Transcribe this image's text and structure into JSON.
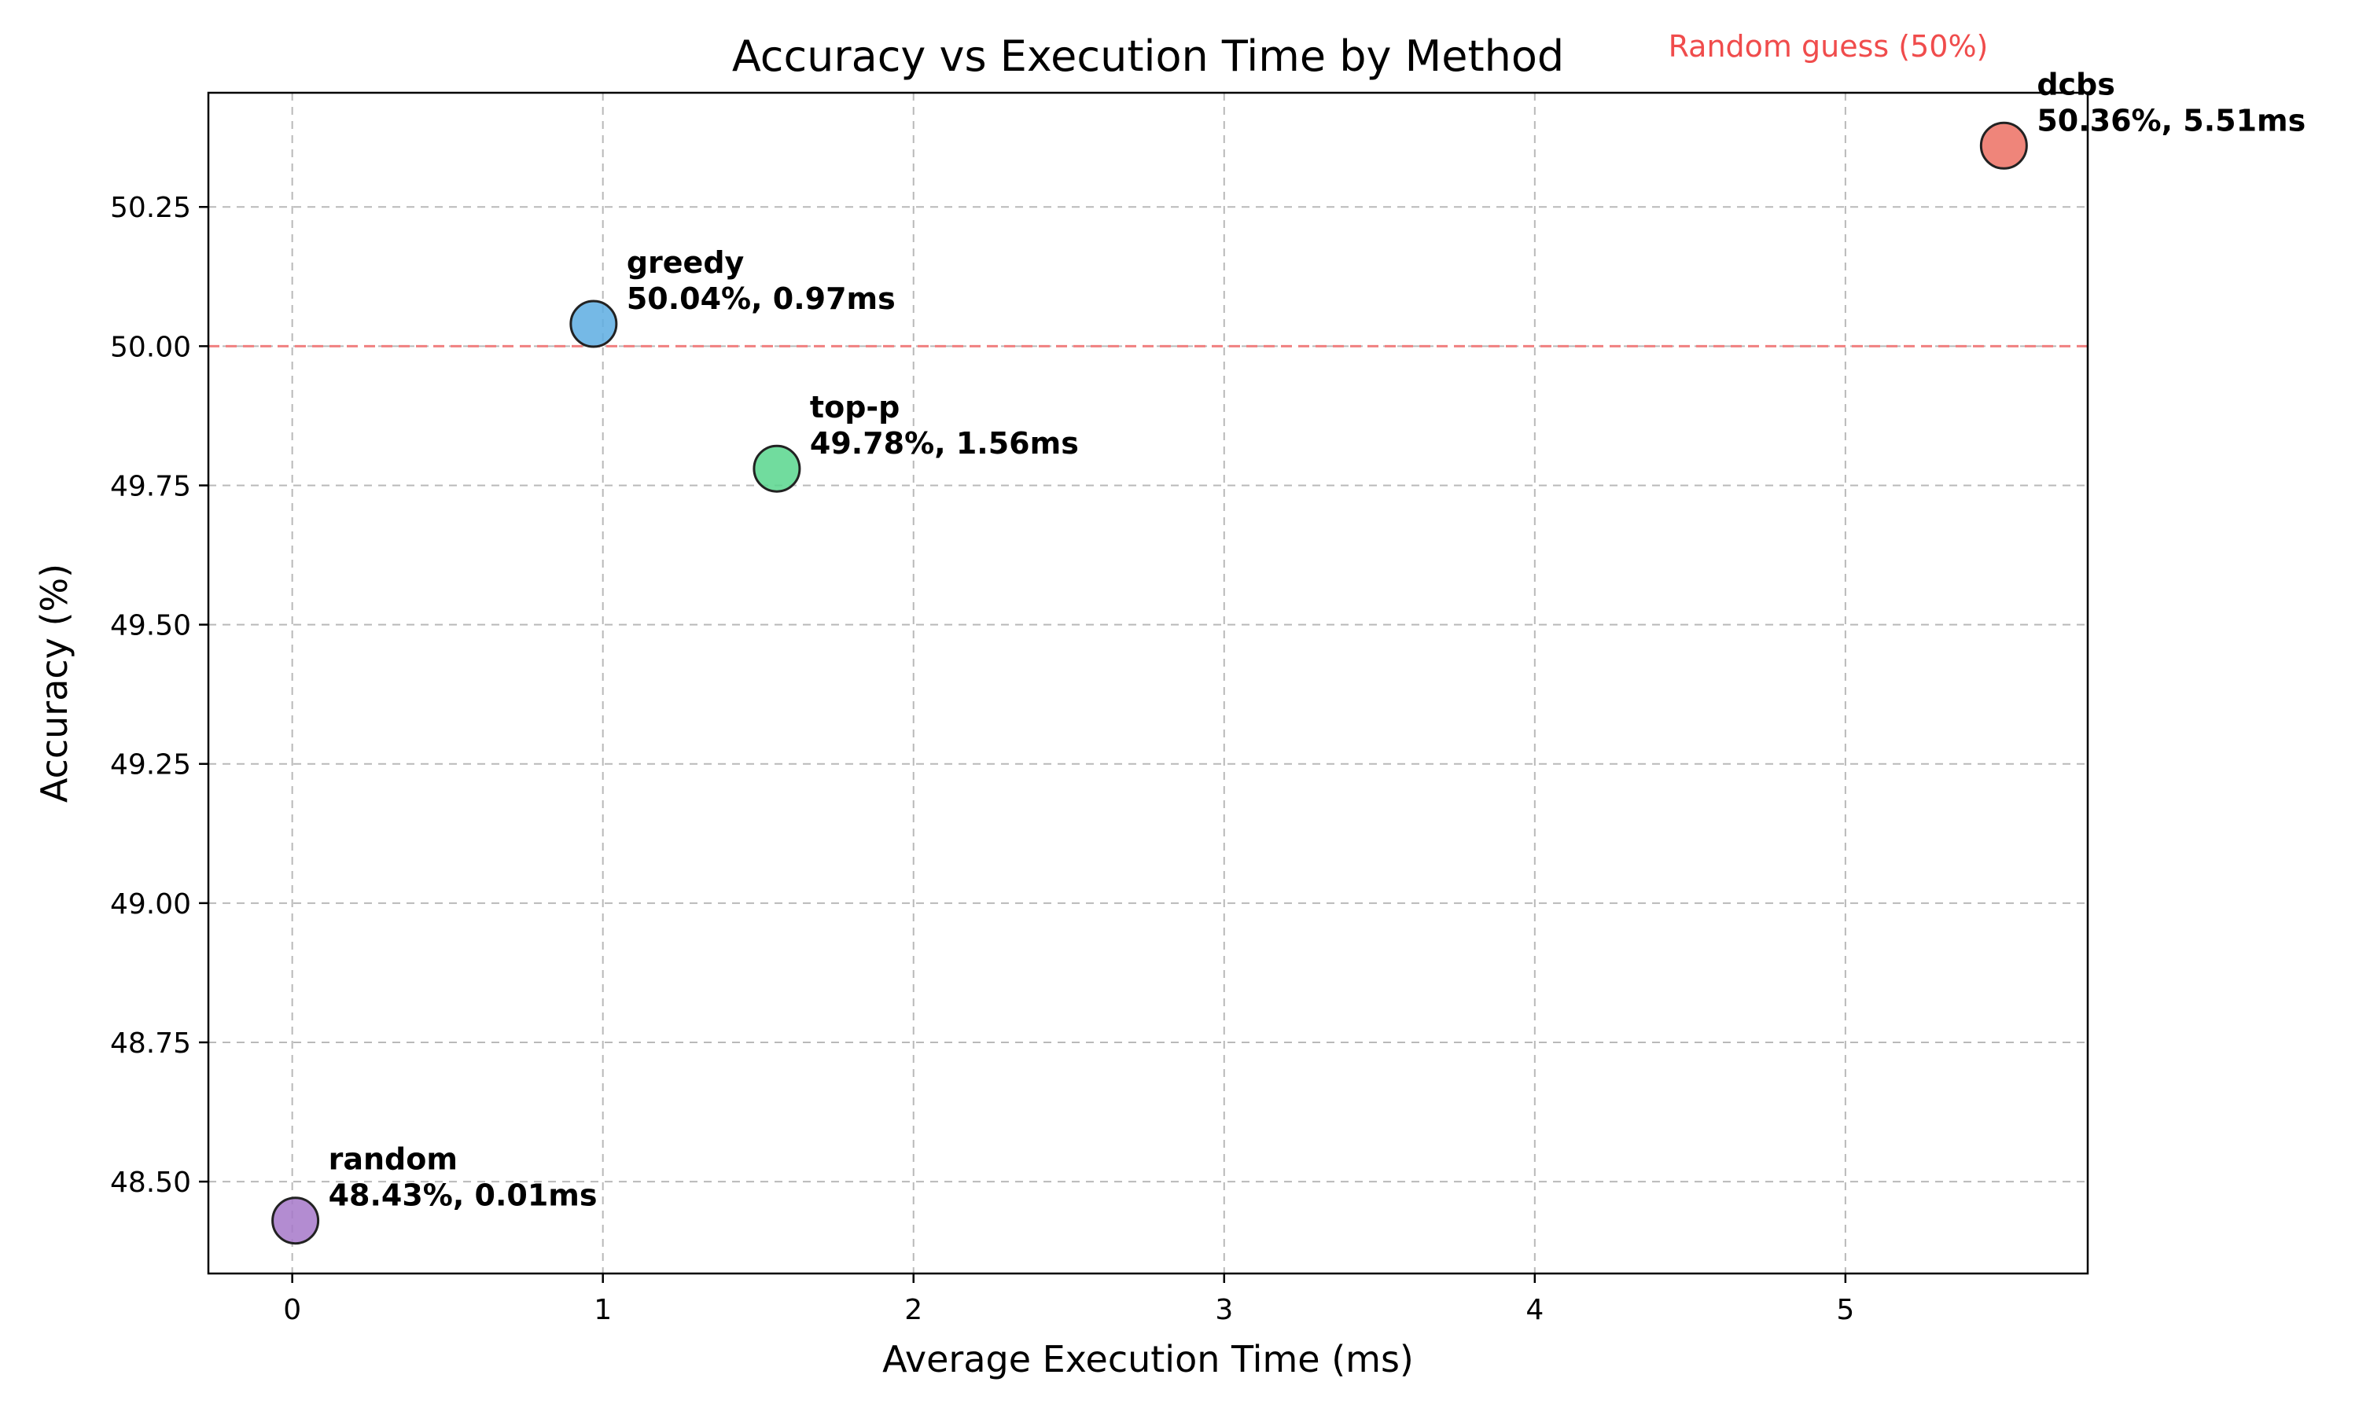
{
  "chart_data": {
    "type": "scatter",
    "title": "Accuracy vs Execution Time by Method",
    "xlabel": "Average Execution Time (ms)",
    "ylabel": "Accuracy (%)",
    "xlim": [
      -0.27,
      5.78
    ],
    "ylim": [
      48.335,
      50.455
    ],
    "xticks": [
      0,
      1,
      2,
      3,
      4,
      5
    ],
    "xtick_labels": [
      "0",
      "1",
      "2",
      "3",
      "4",
      "5"
    ],
    "yticks": [
      48.5,
      48.75,
      49.0,
      49.25,
      49.5,
      49.75,
      50.0,
      50.25
    ],
    "ytick_labels": [
      "48.50",
      "48.75",
      "49.00",
      "49.25",
      "49.50",
      "49.75",
      "50.00",
      "50.25"
    ],
    "grid": true,
    "reference_line": {
      "y": 50.0,
      "label": "Random guess (50%)",
      "color": "#f04c4c"
    },
    "points": [
      {
        "name": "random",
        "x": 0.01,
        "y": 48.43,
        "label": "48.43%, 0.01ms",
        "color": "#a678c9"
      },
      {
        "name": "greedy",
        "x": 0.97,
        "y": 50.04,
        "label": "50.04%, 0.97ms",
        "color": "#5dade2"
      },
      {
        "name": "top-p",
        "x": 1.56,
        "y": 49.78,
        "label": "49.78%, 1.56ms",
        "color": "#58d68d"
      },
      {
        "name": "dcbs",
        "x": 5.51,
        "y": 50.36,
        "label": "50.36%, 5.51ms",
        "color": "#ec7063"
      }
    ]
  }
}
